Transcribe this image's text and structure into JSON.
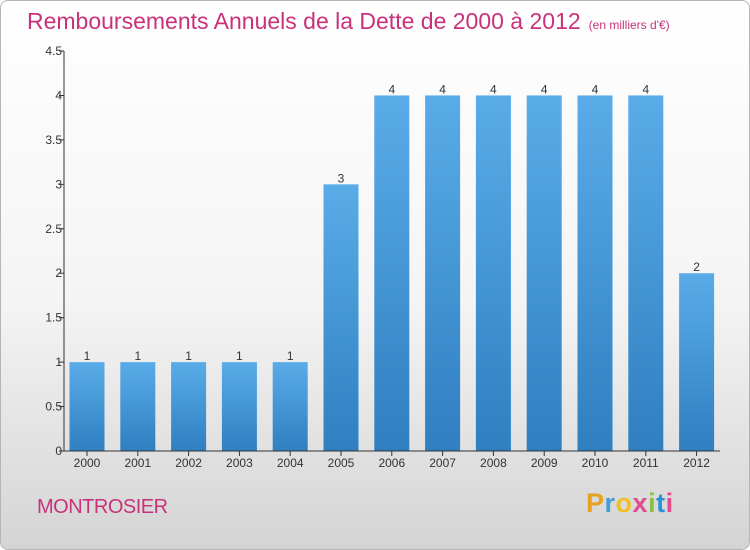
{
  "header": {
    "title": "Remboursements Annuels de la Dette de 2000 à 2012",
    "unit": "(en milliers d'€)"
  },
  "footer": {
    "city": "MONTROSIER",
    "brand": "Proxiti"
  },
  "colors": {
    "title": "#c8327a",
    "bar_top": "#5aace8",
    "bar_bottom": "#2f7fc1",
    "axis": "#333333"
  },
  "chart_data": {
    "type": "bar",
    "title": "Remboursements Annuels de la Dette de 2000 à 2012",
    "subtitle": "(en milliers d'€)",
    "xlabel": "",
    "ylabel": "",
    "categories": [
      "2000",
      "2001",
      "2002",
      "2003",
      "2004",
      "2005",
      "2006",
      "2007",
      "2008",
      "2009",
      "2010",
      "2011",
      "2012"
    ],
    "values": [
      1,
      1,
      1,
      1,
      1,
      3,
      4,
      4,
      4,
      4,
      4,
      4,
      2
    ],
    "data_labels": [
      "1",
      "1",
      "1",
      "1",
      "1",
      "3",
      "4",
      "4",
      "4",
      "4",
      "4",
      "4",
      "2"
    ],
    "ylim": [
      0,
      4.5
    ],
    "yticks": [
      0,
      0.5,
      1,
      1.5,
      2,
      2.5,
      3,
      3.5,
      4,
      4.5
    ],
    "ytick_labels": [
      "0",
      "0.5",
      "1",
      "1.5",
      "2",
      "2.5",
      "3",
      "3.5",
      "4",
      "4.5"
    ],
    "grid": false,
    "legend": "none"
  }
}
